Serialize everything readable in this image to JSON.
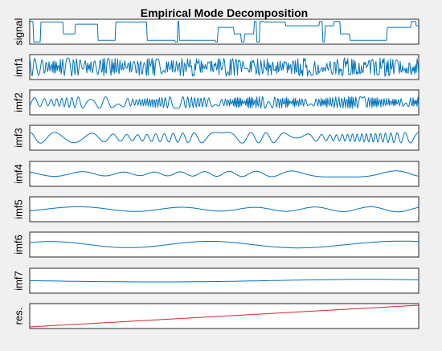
{
  "chart_data": {
    "type": "line",
    "title": "Empirical Mode Decomposition",
    "grid": false,
    "legend": "none",
    "x_range": [
      0,
      1
    ],
    "colors": {
      "components": "#0072bd",
      "residual": "#d62728",
      "axes": "#262626",
      "background": "#f0f0f0"
    },
    "panels": [
      {
        "label": "signal",
        "kind": "signal",
        "amplitude": 1.0,
        "period_samples": 0,
        "ylim": [
          -1,
          1
        ]
      },
      {
        "label": "imf1",
        "kind": "oscillation",
        "amplitude": 0.85,
        "period_samples": 5,
        "ylim": [
          -1,
          1
        ]
      },
      {
        "label": "imf2",
        "kind": "oscillation",
        "amplitude": 0.55,
        "period_samples": 11,
        "ylim": [
          -1,
          1
        ]
      },
      {
        "label": "imf3",
        "kind": "oscillation",
        "amplitude": 0.5,
        "period_samples": 25,
        "ylim": [
          -1,
          1
        ]
      },
      {
        "label": "imf4",
        "kind": "oscillation",
        "amplitude": 0.28,
        "period_samples": 55,
        "ylim": [
          -1,
          1
        ]
      },
      {
        "label": "imf5",
        "kind": "oscillation",
        "amplitude": 0.3,
        "period_samples": 120,
        "ylim": [
          -1,
          1
        ]
      },
      {
        "label": "imf6",
        "kind": "oscillation",
        "amplitude": 0.32,
        "period_samples": 260,
        "ylim": [
          -1,
          1
        ]
      },
      {
        "label": "imf7",
        "kind": "oscillation",
        "amplitude": 0.2,
        "period_samples": 600,
        "ylim": [
          -1,
          1
        ]
      },
      {
        "label": "res.",
        "kind": "trend",
        "amplitude": 1.0,
        "period_samples": 0,
        "ylim": [
          -1,
          1
        ]
      }
    ]
  }
}
